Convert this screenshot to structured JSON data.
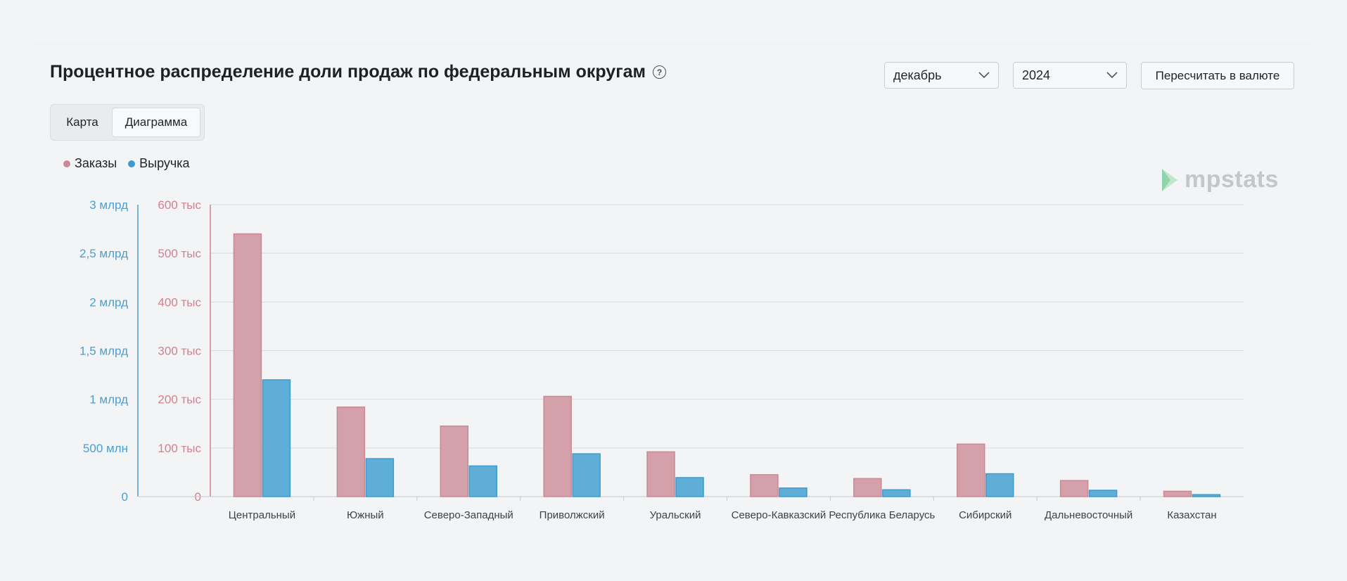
{
  "header": {
    "title": "Процентное распределение доли продаж по федеральным округам",
    "help_icon": "question-circle-icon",
    "month_select": "декабрь",
    "year_select": "2024",
    "recalc_button": "Пересчитать в валюте"
  },
  "tabs": [
    {
      "label": "Карта",
      "active": false
    },
    {
      "label": "Диаграмма",
      "active": true
    }
  ],
  "logo": {
    "text": "mpstats"
  },
  "colors": {
    "orders": "#d4a0a9",
    "orders_border": "#c98a95",
    "revenue": "#5faed8",
    "revenue_border": "#3f9acd",
    "left_axis": "#4a9fd0",
    "right_axis": "#d47f8c"
  },
  "chart_data": {
    "type": "bar",
    "categories": [
      "Центральный",
      "Южный",
      "Северо-Западный",
      "Приволжский",
      "Уральский",
      "Северо-Кавказский",
      "Республика Беларусь",
      "Сибирский",
      "Дальневосточный",
      "Казахстан"
    ],
    "series": [
      {
        "name": "Заказы",
        "axis": "orders",
        "values": [
          540000,
          184000,
          145000,
          206000,
          92000,
          45000,
          37000,
          108000,
          33000,
          11000
        ]
      },
      {
        "name": "Выручка",
        "axis": "revenue",
        "values": [
          1200000000,
          390000000,
          315000000,
          440000000,
          195000000,
          88000000,
          70000000,
          235000000,
          65000000,
          20000000
        ]
      }
    ],
    "axes": {
      "revenue": {
        "min": 0,
        "max": 3000000000,
        "ticks": [
          "0",
          "500 млн",
          "1 млрд",
          "1,5 млрд",
          "2 млрд",
          "2,5 млрд",
          "3 млрд"
        ]
      },
      "orders": {
        "min": 0,
        "max": 600000,
        "ticks": [
          "0",
          "100 тыс",
          "200 тыс",
          "300 тыс",
          "400 тыс",
          "500 тыс",
          "600 тыс"
        ]
      }
    },
    "grid": true,
    "legend_position": "top-left"
  }
}
